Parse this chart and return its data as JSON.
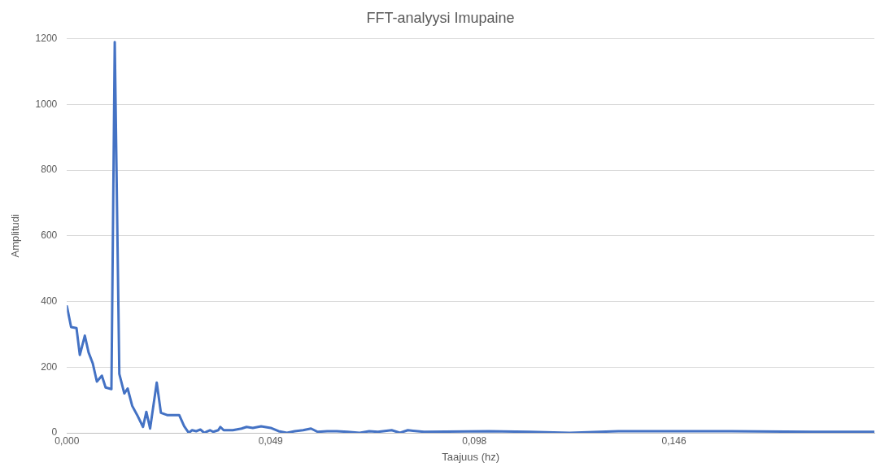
{
  "chart_data": {
    "type": "line",
    "title": "FFT-analyysi Imupaine",
    "xlabel": "Taajuus (hz)",
    "ylabel": "Amplitudi",
    "x": [
      0,
      0.001,
      0.0023,
      0.0031,
      0.0043,
      0.0052,
      0.0062,
      0.0072,
      0.0084,
      0.0093,
      0.0107,
      0.0115,
      0.0126,
      0.0138,
      0.0146,
      0.0157,
      0.0169,
      0.0183,
      0.0191,
      0.02,
      0.0216,
      0.0226,
      0.0241,
      0.027,
      0.0282,
      0.0293,
      0.0301,
      0.0311,
      0.0321,
      0.033,
      0.0344,
      0.0352,
      0.0364,
      0.0369,
      0.0377,
      0.0399,
      0.042,
      0.0432,
      0.0447,
      0.0467,
      0.049,
      0.0509,
      0.0529,
      0.0548,
      0.0568,
      0.0587,
      0.0603,
      0.0626,
      0.0649,
      0.0675,
      0.0704,
      0.0727,
      0.0748,
      0.0781,
      0.0801,
      0.082,
      0.0859,
      0.1015,
      0.1112,
      0.1209,
      0.1326,
      0.1598,
      0.1792,
      0.1942
    ],
    "series": [
      {
        "color": "#4472c4",
        "values": [
          385,
          322,
          319,
          237,
          296,
          245,
          212,
          156,
          174,
          138,
          133,
          1190,
          179,
          120,
          135,
          82,
          54,
          18,
          64,
          13,
          153,
          61,
          54,
          54,
          20,
          0,
          8,
          5,
          10,
          0,
          8,
          3,
          8,
          18,
          8,
          8,
          13,
          18,
          15,
          20,
          15,
          5,
          0,
          5,
          8,
          13,
          3,
          5,
          5,
          3,
          0,
          5,
          3,
          8,
          0,
          8,
          3,
          5,
          3,
          0,
          5,
          5,
          3,
          3
        ]
      }
    ],
    "xlim": [
      0,
      0.1942
    ],
    "xticks": [
      {
        "value": 0,
        "label": "0,000"
      },
      {
        "value": 0.049,
        "label": "0,049"
      },
      {
        "value": 0.098,
        "label": "0,098"
      },
      {
        "value": 0.146,
        "label": "0,146"
      }
    ],
    "ylim": [
      0,
      1200
    ],
    "yticks": [
      0,
      200,
      400,
      600,
      800,
      1000,
      1200
    ],
    "grid": "y",
    "legend": false,
    "marker": "none",
    "line_style": "solid"
  }
}
